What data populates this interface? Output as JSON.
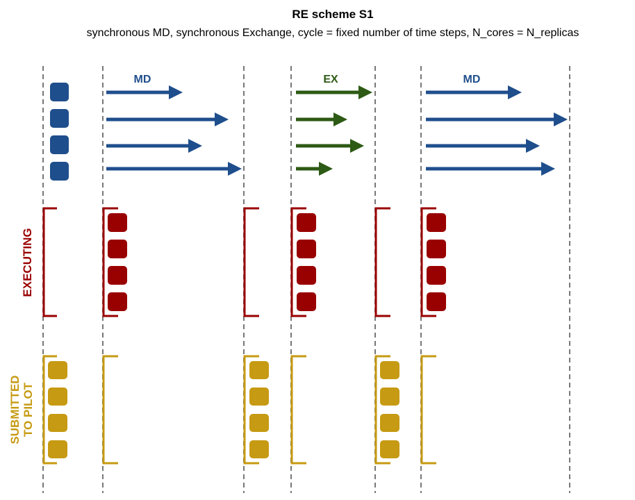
{
  "title": "RE scheme S1",
  "subtitle": "synchronous MD, synchronous Exchange, cycle = fixed number of time steps, N_cores = N_replicas",
  "phases": {
    "md1": "MD",
    "ex": "EX",
    "md2": "MD"
  },
  "rows": {
    "executing": "EXECUTING",
    "submitted_line1": "SUBMITTED",
    "submitted_line2": "TO PILOT"
  },
  "colors": {
    "md": "#1f4e8c",
    "ex": "#2d5a14",
    "executing": "#990000",
    "submitted": "#c69a12",
    "timeline": "#777777"
  }
}
